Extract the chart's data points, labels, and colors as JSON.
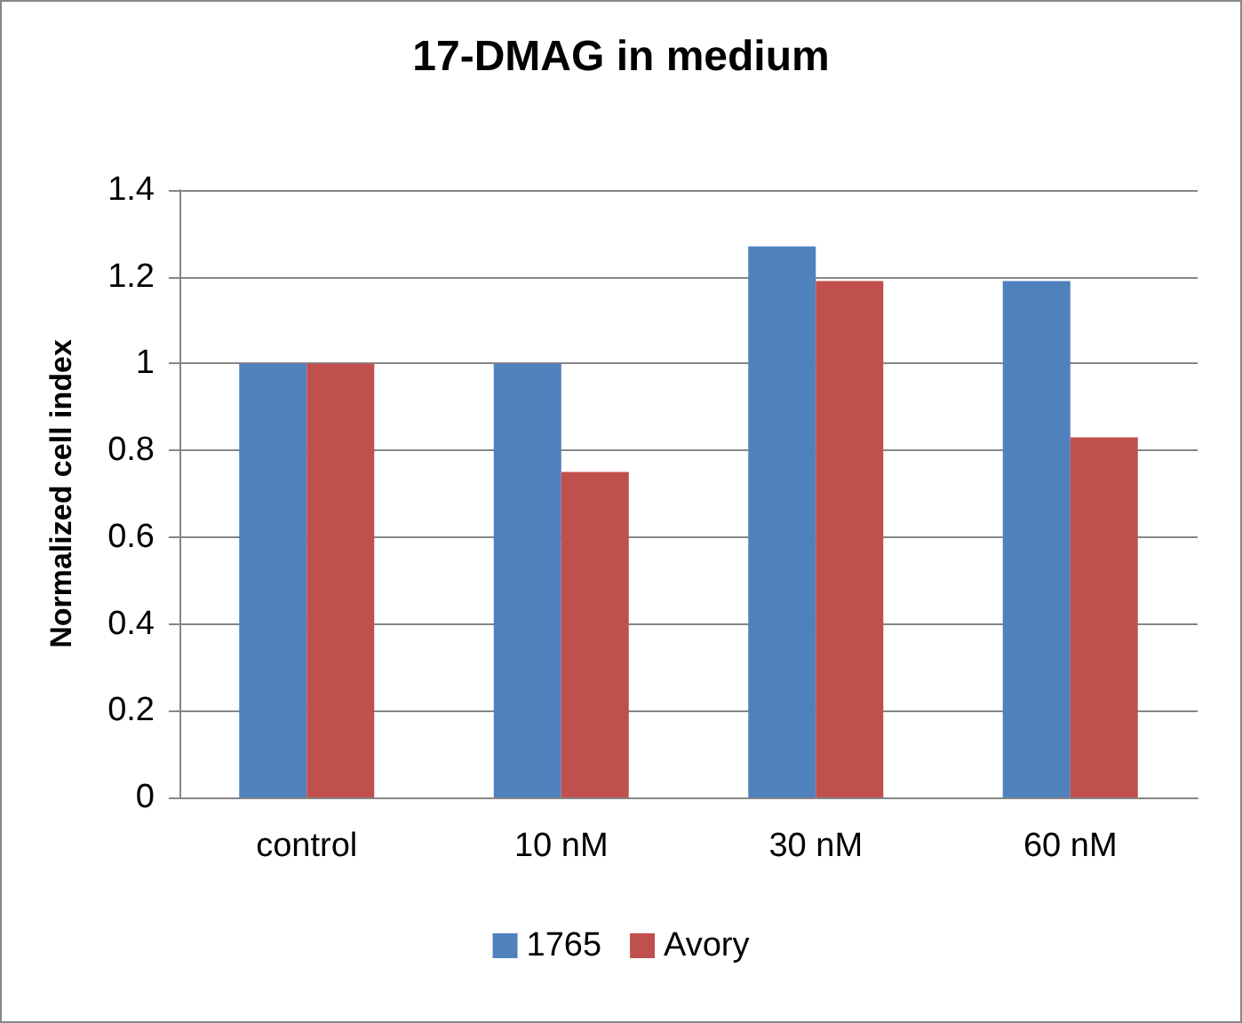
{
  "chart_data": {
    "type": "bar",
    "title": "17-DMAG in medium",
    "ylabel": "Normalized cell index",
    "categories": [
      "control",
      "10 nM",
      "30 nM",
      "60 nM"
    ],
    "series": [
      {
        "name": "1765",
        "color": "#4f81bd",
        "values": [
          1.0,
          1.0,
          1.27,
          1.19
        ]
      },
      {
        "name": "Avory",
        "color": "#c0504d",
        "values": [
          1.0,
          0.75,
          1.19,
          0.83
        ]
      }
    ],
    "ylim": [
      0,
      1.4
    ],
    "yticks": [
      0,
      0.2,
      0.4,
      0.6,
      0.8,
      1,
      1.2,
      1.4
    ],
    "grid": "y",
    "legend": "bottom"
  }
}
